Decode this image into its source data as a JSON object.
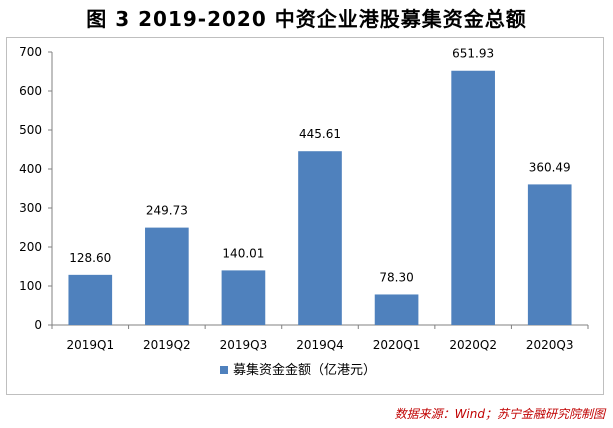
{
  "title": "图 3  2019-2020 中资企业港股募集资金总额",
  "source": "数据来源：Wind；苏宁金融研究院制图",
  "chart_data": {
    "type": "bar",
    "categories": [
      "2019Q1",
      "2019Q2",
      "2019Q3",
      "2019Q4",
      "2020Q1",
      "2020Q2",
      "2020Q3"
    ],
    "series": [
      {
        "name": "募集资金金额（亿港元）",
        "values": [
          128.6,
          249.73,
          140.01,
          445.61,
          78.3,
          651.93,
          360.49
        ]
      }
    ],
    "data_labels": [
      "128.60",
      "249.73",
      "140.01",
      "445.61",
      "78.30",
      "651.93",
      "360.49"
    ],
    "ylim": [
      0,
      700
    ],
    "yticks": [
      0,
      100,
      200,
      300,
      400,
      500,
      600,
      700
    ],
    "grid": false,
    "legend": "bottom",
    "bar_color": "#4f81bd"
  }
}
